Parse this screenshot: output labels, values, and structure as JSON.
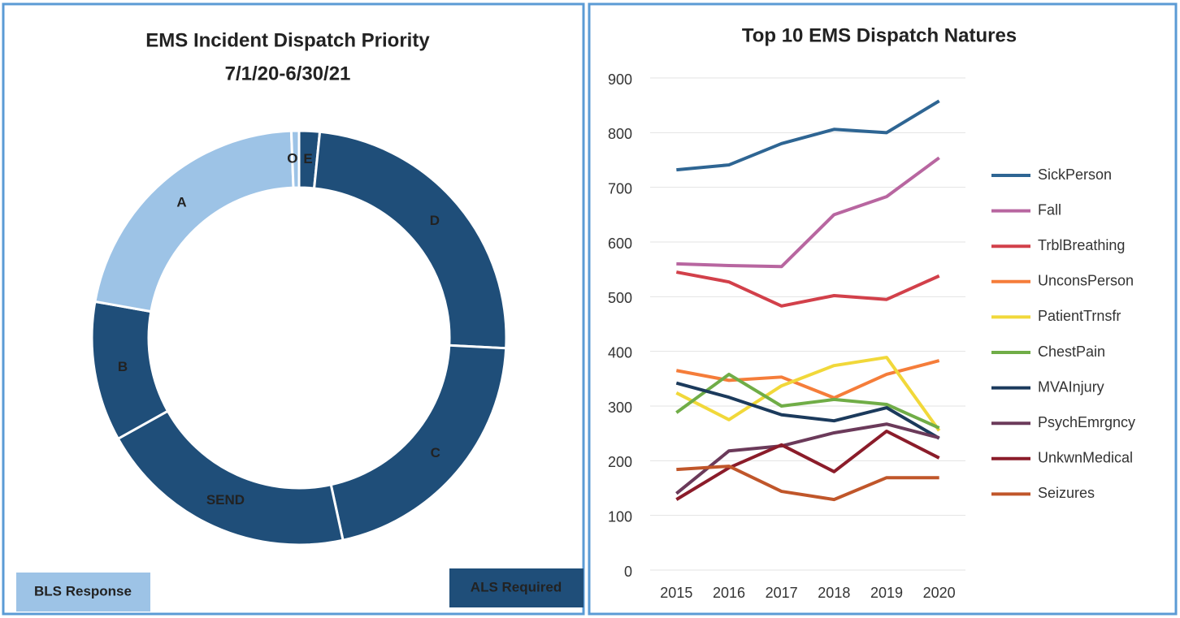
{
  "chart_data": [
    {
      "type": "pie",
      "title": "EMS Incident Dispatch Priority",
      "subtitle": "7/1/20-6/30/21",
      "categories": [
        "E",
        "D",
        "C",
        "SEND",
        "B",
        "A",
        "O"
      ],
      "values": [
        1.6,
        24.2,
        20.8,
        20.3,
        10.9,
        21.6,
        0.6
      ],
      "colors": [
        "#1f4e79",
        "#1f4e79",
        "#1f4e79",
        "#1f4e79",
        "#1f4e79",
        "#9dc3e6",
        "#9dc3e6"
      ],
      "legend": [
        {
          "label": "BLS Response",
          "color": "#9dc3e6"
        },
        {
          "label": "ALS Required",
          "color": "#1f4e79"
        }
      ]
    },
    {
      "type": "line",
      "title": "Top 10 EMS Dispatch Natures",
      "categories": [
        "2015",
        "2016",
        "2017",
        "2018",
        "2019",
        "2020"
      ],
      "ylim": [
        0,
        900
      ],
      "yticks": [
        0,
        100,
        200,
        300,
        400,
        500,
        600,
        700,
        800,
        900
      ],
      "grid": true,
      "series": [
        {
          "name": "SickPerson",
          "color": "#2e6593",
          "values": [
            732,
            741,
            780,
            806,
            800,
            858
          ]
        },
        {
          "name": "Fall",
          "color": "#b866a0",
          "values": [
            560,
            557,
            555,
            650,
            683,
            754
          ]
        },
        {
          "name": "TrblBreathing",
          "color": "#d2404a",
          "values": [
            545,
            527,
            483,
            502,
            495,
            538
          ]
        },
        {
          "name": "UnconsPerson",
          "color": "#f57d3a",
          "values": [
            365,
            347,
            353,
            315,
            358,
            383
          ]
        },
        {
          "name": "PatientTrnsfr",
          "color": "#f1d83a",
          "values": [
            324,
            275,
            337,
            374,
            389,
            255
          ]
        },
        {
          "name": "ChestPain",
          "color": "#70ad47",
          "values": [
            288,
            358,
            300,
            312,
            303,
            260
          ]
        },
        {
          "name": "MVAInjury",
          "color": "#1b3a5c",
          "values": [
            342,
            316,
            284,
            273,
            297,
            241
          ]
        },
        {
          "name": "PsychEmrgncy",
          "color": "#6b3a5a",
          "values": [
            140,
            218,
            227,
            251,
            267,
            242
          ]
        },
        {
          "name": "UnkwnMedical",
          "color": "#8b1c2a",
          "values": [
            129,
            187,
            229,
            180,
            254,
            205
          ]
        },
        {
          "name": "Seizures",
          "color": "#c0562a",
          "values": [
            184,
            190,
            144,
            129,
            169,
            169
          ]
        }
      ]
    }
  ]
}
